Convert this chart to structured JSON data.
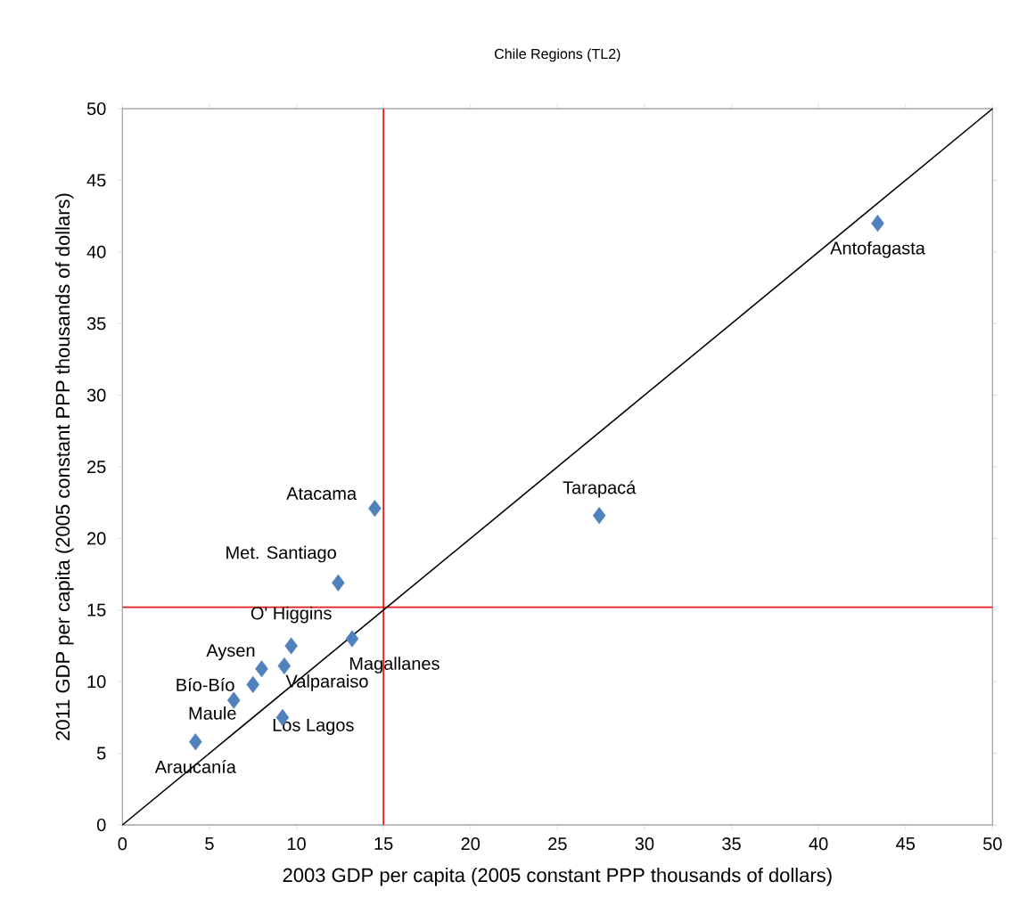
{
  "chart_data": {
    "type": "scatter",
    "title": "Chile Regions (TL2)",
    "xlabel": "2003 GDP per capita (2005 constant PPP thousands of dollars)",
    "ylabel": "2011 GDP per capita (2005 constant PPP thousands of  dollars)",
    "xlim": [
      0,
      50
    ],
    "ylim": [
      0,
      50
    ],
    "xticks": [
      0,
      5,
      10,
      15,
      20,
      25,
      30,
      35,
      40,
      45,
      50
    ],
    "yticks": [
      0,
      5,
      10,
      15,
      20,
      25,
      30,
      35,
      40,
      45,
      50
    ],
    "grid": false,
    "marker": "diamond",
    "series": [
      {
        "color": "#4f81bd",
        "x": [
          43.4,
          27.4,
          14.5,
          12.4,
          9.7,
          13.2,
          8.0,
          9.3,
          7.5,
          6.4,
          9.2,
          4.2
        ],
        "values": [
          42.0,
          21.6,
          22.1,
          16.9,
          12.5,
          13.0,
          10.9,
          11.1,
          9.8,
          8.7,
          7.5,
          5.8
        ]
      },
      {
        "type": "line",
        "color": "#000000",
        "marker": "none",
        "x": [
          0,
          50
        ],
        "values": [
          0,
          50
        ]
      }
    ],
    "ref_lines": [
      {
        "axis": "x",
        "value": 15,
        "color": "#e41a1c"
      },
      {
        "axis": "y",
        "value": 15.2,
        "color": "#e41a1c"
      }
    ],
    "annotations": [
      {
        "text": "Antofagasta",
        "x": 43.4,
        "y": 42.0
      },
      {
        "text": "Tarapacá",
        "x": 27.4,
        "y": 21.6
      },
      {
        "text": "Atacama",
        "x": 14.5,
        "y": 22.1
      },
      {
        "text": "Met. Santiago",
        "x": 12.4,
        "y": 16.9
      },
      {
        "text": "O' Higgins",
        "x": 9.7,
        "y": 12.5
      },
      {
        "text": "Magallanes",
        "x": 13.2,
        "y": 13.0
      },
      {
        "text": "Aysen",
        "x": 8.0,
        "y": 10.9
      },
      {
        "text": "Valparaiso",
        "x": 9.3,
        "y": 11.1
      },
      {
        "text": "Bío-Bío",
        "x": 7.5,
        "y": 9.8
      },
      {
        "text": "Maule",
        "x": 6.4,
        "y": 8.7
      },
      {
        "text": "Los Lagos",
        "x": 9.2,
        "y": 7.5
      },
      {
        "text": "Araucanía",
        "x": 4.2,
        "y": 5.8
      }
    ]
  }
}
